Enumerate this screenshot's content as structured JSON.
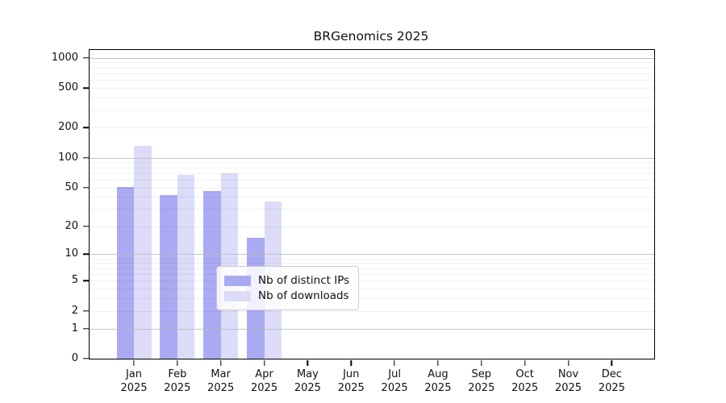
{
  "chart_data": {
    "type": "bar",
    "title": "BRGenomics 2025",
    "categories": [
      "Jan 2025",
      "Feb 2025",
      "Mar 2025",
      "Apr 2025",
      "May 2025",
      "Jun 2025",
      "Jul 2025",
      "Aug 2025",
      "Sep 2025",
      "Oct 2025",
      "Nov 2025",
      "Dec 2025"
    ],
    "series": [
      {
        "name": "Nb of distinct IPs",
        "color": "#aaaaf3",
        "values": [
          51,
          42,
          46,
          15,
          0,
          0,
          0,
          0,
          0,
          0,
          0,
          0
        ]
      },
      {
        "name": "Nb of downloads",
        "color": "#dcdcf9",
        "values": [
          132,
          67,
          69,
          36,
          0,
          0,
          0,
          0,
          0,
          0,
          0,
          0
        ]
      }
    ],
    "yscale": "log1p",
    "ylim": [
      0,
      1200
    ],
    "ytick_labels": [
      "0",
      "1",
      "2",
      "5",
      "10",
      "20",
      "50",
      "100",
      "200",
      "500",
      "1000"
    ],
    "yticks": [
      0,
      1,
      2,
      5,
      10,
      20,
      50,
      100,
      200,
      500,
      1000
    ],
    "grid": {
      "orientation": "horizontal",
      "major_lines": [
        1,
        10,
        100,
        1000
      ],
      "minor_multiples_per_decade": [
        2,
        3,
        4,
        5,
        6,
        7,
        8,
        9
      ],
      "decades": [
        1,
        10,
        100
      ]
    },
    "legend": {
      "position": "inside-bottom-center"
    },
    "colors": {
      "bar_distinct_ips": "#aaaaf3",
      "bar_downloads": "#dcdcf9",
      "axis": "#000000",
      "grid_major": "#b9b9b9",
      "grid_minor": "#ebebeb",
      "text": "#111111",
      "legend_border": "#cccccc",
      "background": "#ffffff"
    }
  }
}
